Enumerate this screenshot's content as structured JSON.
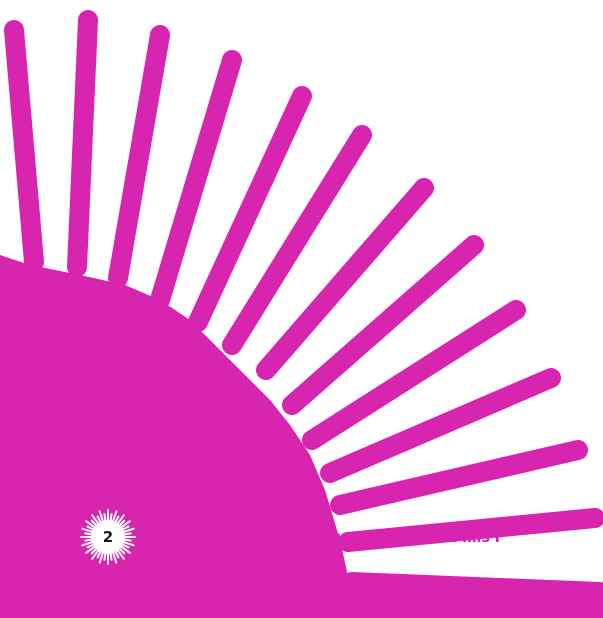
{
  "brand": {
    "accent_color": "#D825B0",
    "text_color": "#1A1A1A",
    "badge_fill": "#FFFFFF"
  },
  "page_badge": {
    "icon": "sunburst-icon",
    "number": "2"
  },
  "footer": {
    "title": "Case Study: PT Bungasari Flour Mills I"
  },
  "decoration": {
    "icon": "sunburst-rays-icon"
  }
}
